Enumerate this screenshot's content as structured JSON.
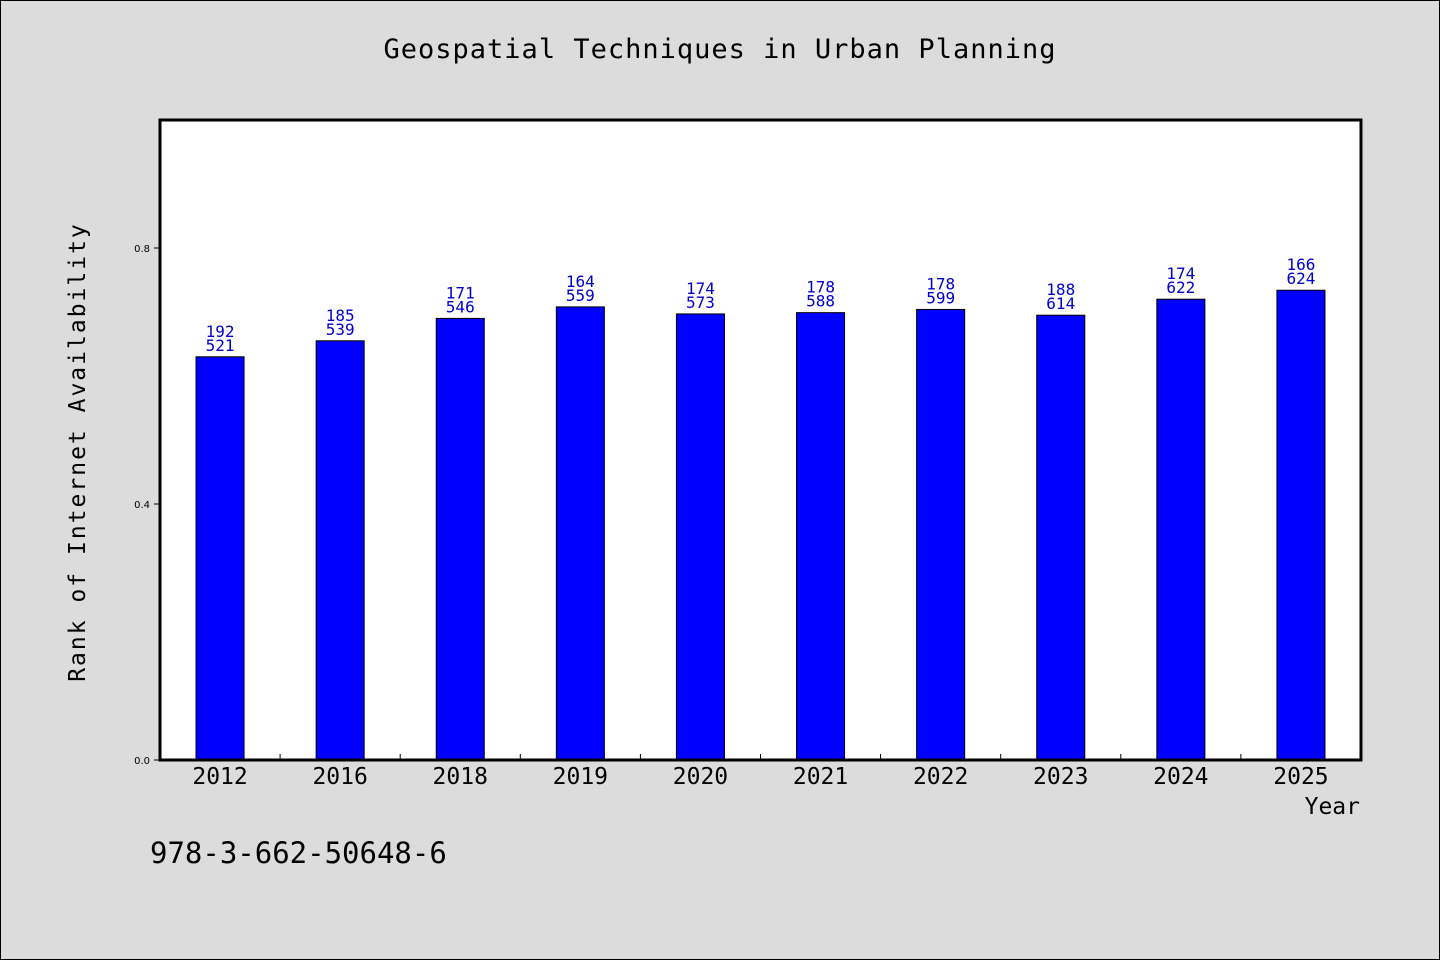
{
  "chart_data": {
    "type": "bar",
    "title": "Geospatial Techniques in Urban Planning",
    "xlabel": "Year",
    "ylabel": "Rank of Internet Availability",
    "ylim": [
      0,
      1.0
    ],
    "yticks": [
      "0.0",
      "0.4",
      "0.8"
    ],
    "categories": [
      "2012",
      "2016",
      "2018",
      "2019",
      "2020",
      "2021",
      "2022",
      "2023",
      "2024",
      "2025"
    ],
    "values": [
      0.63,
      0.655,
      0.69,
      0.708,
      0.697,
      0.699,
      0.704,
      0.695,
      0.72,
      0.734
    ],
    "labels_top": [
      "192",
      "185",
      "171",
      "164",
      "174",
      "178",
      "178",
      "188",
      "174",
      "166"
    ],
    "labels_bottom": [
      "521",
      "539",
      "546",
      "559",
      "573",
      "588",
      "599",
      "614",
      "622",
      "624"
    ],
    "bar_color": "#0000ff",
    "label_color": "#0000cc",
    "grid": false,
    "legend": "none"
  },
  "footer": {
    "isbn": "978-3-662-50648-6"
  }
}
